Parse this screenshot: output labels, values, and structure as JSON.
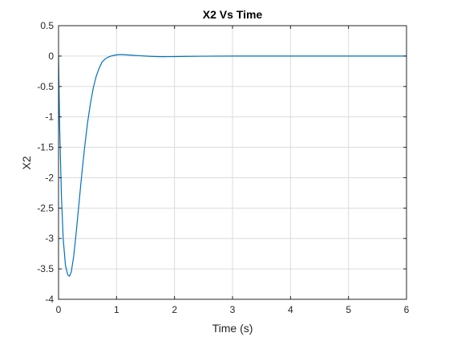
{
  "chart_data": {
    "type": "line",
    "title": "X2 Vs Time",
    "xlabel": "Time (s)",
    "ylabel": "X2",
    "xlim": [
      0,
      6
    ],
    "ylim": [
      -4,
      0.5
    ],
    "xticks": [
      0,
      1,
      2,
      3,
      4,
      5,
      6
    ],
    "yticks": [
      0.5,
      0,
      -0.5,
      -1,
      -1.5,
      -2,
      -2.5,
      -3,
      -3.5,
      -4
    ],
    "xtick_labels": [
      "0",
      "1",
      "2",
      "3",
      "4",
      "5",
      "6"
    ],
    "ytick_labels": [
      "0.5",
      "0",
      "-0.5",
      "-1",
      "-1.5",
      "-2",
      "-2.5",
      "-3",
      "-3.5",
      "-4"
    ],
    "grid": true,
    "series": [
      {
        "color": "#0072bd",
        "x": [
          0,
          0.02,
          0.05,
          0.08,
          0.12,
          0.16,
          0.19,
          0.22,
          0.26,
          0.3,
          0.35,
          0.4,
          0.45,
          0.5,
          0.55,
          0.6,
          0.65,
          0.7,
          0.75,
          0.8,
          0.85,
          0.9,
          0.95,
          1.0,
          1.05,
          1.1,
          1.15,
          1.2,
          1.3,
          1.4,
          1.5,
          1.6,
          1.7,
          1.8,
          1.9,
          2.0,
          2.2,
          2.5,
          3.0,
          3.5,
          4.0,
          5.0,
          6.0
        ],
        "y": [
          0,
          -1.2,
          -2.3,
          -3.0,
          -3.45,
          -3.6,
          -3.62,
          -3.55,
          -3.3,
          -2.95,
          -2.45,
          -1.95,
          -1.5,
          -1.1,
          -0.78,
          -0.52,
          -0.33,
          -0.2,
          -0.1,
          -0.05,
          -0.02,
          0.0,
          0.01,
          0.02,
          0.025,
          0.025,
          0.022,
          0.018,
          0.012,
          0.006,
          0.0,
          -0.005,
          -0.008,
          -0.01,
          -0.009,
          -0.008,
          -0.005,
          -0.002,
          0.0,
          0.0,
          0.0,
          0.0,
          0.0
        ]
      }
    ]
  }
}
